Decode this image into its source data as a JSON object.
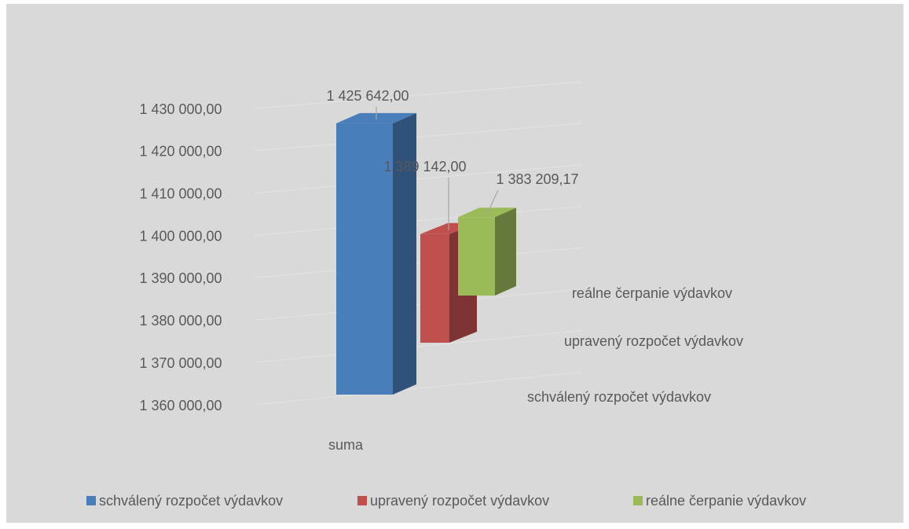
{
  "chart_data": {
    "type": "bar3d",
    "categories": [
      "suma"
    ],
    "series": [
      {
        "name": "schválený rozpočet výdavkov",
        "color": "#4a7ebb",
        "values": [
          1425642
        ],
        "value_labels": [
          "1 425 642,00"
        ]
      },
      {
        "name": "upravený rozpočet výdavkov",
        "color": "#c0504d",
        "values": [
          1389142
        ],
        "value_labels": [
          "1 389 142,00"
        ]
      },
      {
        "name": "reálne čerpanie výdavkov",
        "color": "#9bbb59",
        "values": [
          1383209.17
        ],
        "value_labels": [
          "1 383 209,17"
        ]
      }
    ],
    "ylim": [
      1360000,
      1430000
    ],
    "yticks": [
      {
        "value": 1360000,
        "label": "1 360 000,00"
      },
      {
        "value": 1370000,
        "label": "1 370 000,00"
      },
      {
        "value": 1380000,
        "label": "1 380 000,00"
      },
      {
        "value": 1390000,
        "label": "1 390 000,00"
      },
      {
        "value": 1400000,
        "label": "1 400 000,00"
      },
      {
        "value": 1410000,
        "label": "1 410 000,00"
      },
      {
        "value": 1420000,
        "label": "1 420 000,00"
      },
      {
        "value": 1430000,
        "label": "1 430 000,00"
      }
    ],
    "grid": true,
    "legend": "bottom"
  }
}
